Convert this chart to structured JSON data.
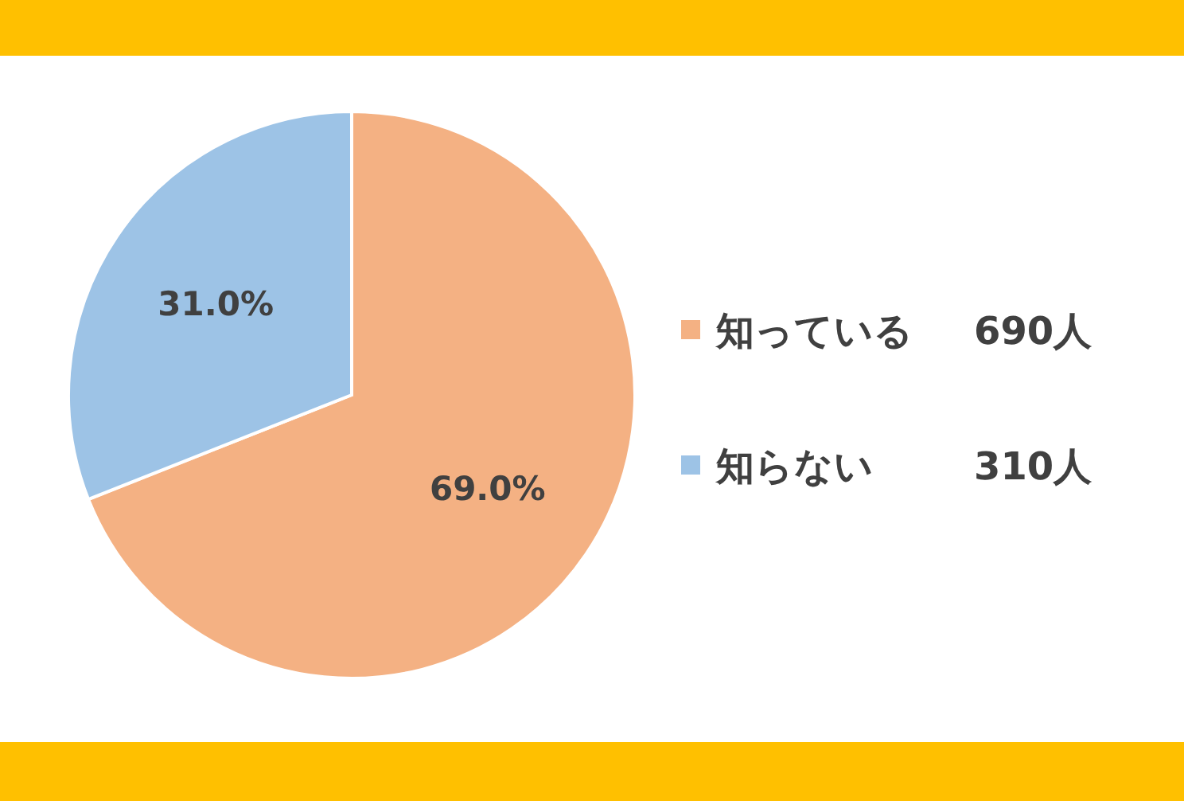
{
  "chart_data": {
    "type": "pie",
    "categories": [
      "知っている",
      "知らない"
    ],
    "values": [
      69.0,
      31.0
    ],
    "value_labels": [
      "69.0%",
      "31.0%"
    ],
    "colors": [
      "#f4b183",
      "#9dc3e6"
    ],
    "legend": "right",
    "annotations": [
      "690人",
      "310人"
    ]
  }
}
